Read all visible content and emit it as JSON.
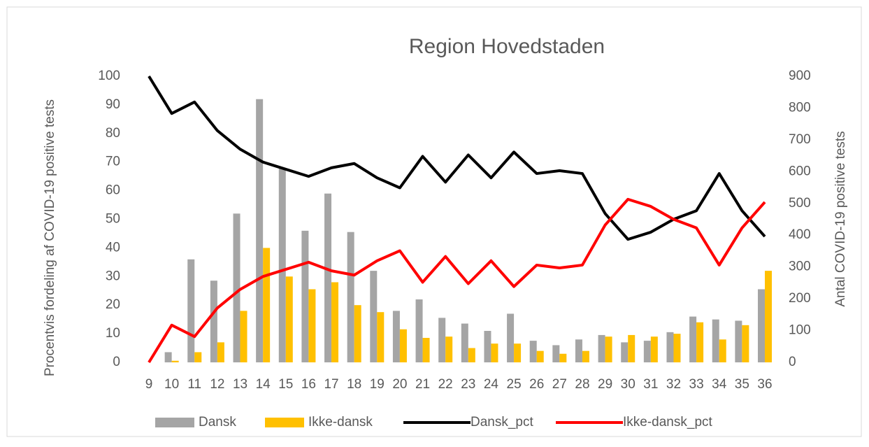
{
  "chart_data": {
    "type": "bar_line",
    "title": "Region Hovedstaden",
    "y_label": "Procentvis fordeling af COVID-19 positive tests",
    "y2_label": "Antal COVID-19 positive tests",
    "categories": [
      "9",
      "10",
      "11",
      "12",
      "13",
      "14",
      "15",
      "16",
      "17",
      "18",
      "19",
      "20",
      "21",
      "22",
      "23",
      "24",
      "25",
      "26",
      "27",
      "28",
      "29",
      "30",
      "31",
      "32",
      "33",
      "34",
      "35",
      "36"
    ],
    "ylim": [
      0,
      100
    ],
    "yticks": [
      0,
      10,
      20,
      30,
      40,
      50,
      60,
      70,
      80,
      90,
      100
    ],
    "y2lim": [
      0,
      900
    ],
    "y2ticks": [
      0,
      100,
      200,
      300,
      400,
      500,
      600,
      700,
      800,
      900
    ],
    "grid": false,
    "legend": "bottom",
    "series": [
      {
        "name": "Dansk",
        "kind": "bar",
        "axis": "y2",
        "color": "#a5a5a5",
        "values": [
          0,
          32,
          324,
          257,
          468,
          828,
          612,
          414,
          531,
          410,
          288,
          162,
          198,
          140,
          122,
          99,
          153,
          68,
          54,
          72,
          86,
          63,
          68,
          95,
          144,
          135,
          131,
          230
        ]
      },
      {
        "name": "Ikke-dansk",
        "kind": "bar",
        "axis": "y2",
        "color": "#ffc000",
        "values": [
          0,
          5,
          32,
          63,
          162,
          360,
          270,
          230,
          252,
          180,
          158,
          104,
          77,
          81,
          45,
          59,
          59,
          36,
          27,
          36,
          81,
          86,
          81,
          90,
          126,
          72,
          117,
          288
        ]
      },
      {
        "name": "Dansk_pct",
        "kind": "line",
        "color": "#000000",
        "values": [
          100,
          87,
          91,
          81,
          74.5,
          70,
          67.5,
          65,
          68,
          69.5,
          64.5,
          61,
          72,
          63,
          72.5,
          64.5,
          73.5,
          66,
          67,
          66,
          52,
          43,
          45.5,
          50,
          53,
          66,
          53,
          44
        ]
      },
      {
        "name": "Ikke-dansk_pct",
        "kind": "line",
        "color": "#ff0000",
        "values": [
          0,
          13,
          9,
          19,
          25.5,
          30,
          32.5,
          35,
          32,
          30.5,
          35.5,
          39,
          28,
          37,
          27.5,
          35.5,
          26.5,
          34,
          33,
          34,
          48,
          57,
          54.5,
          50,
          47,
          34,
          47,
          56
        ]
      }
    ]
  }
}
